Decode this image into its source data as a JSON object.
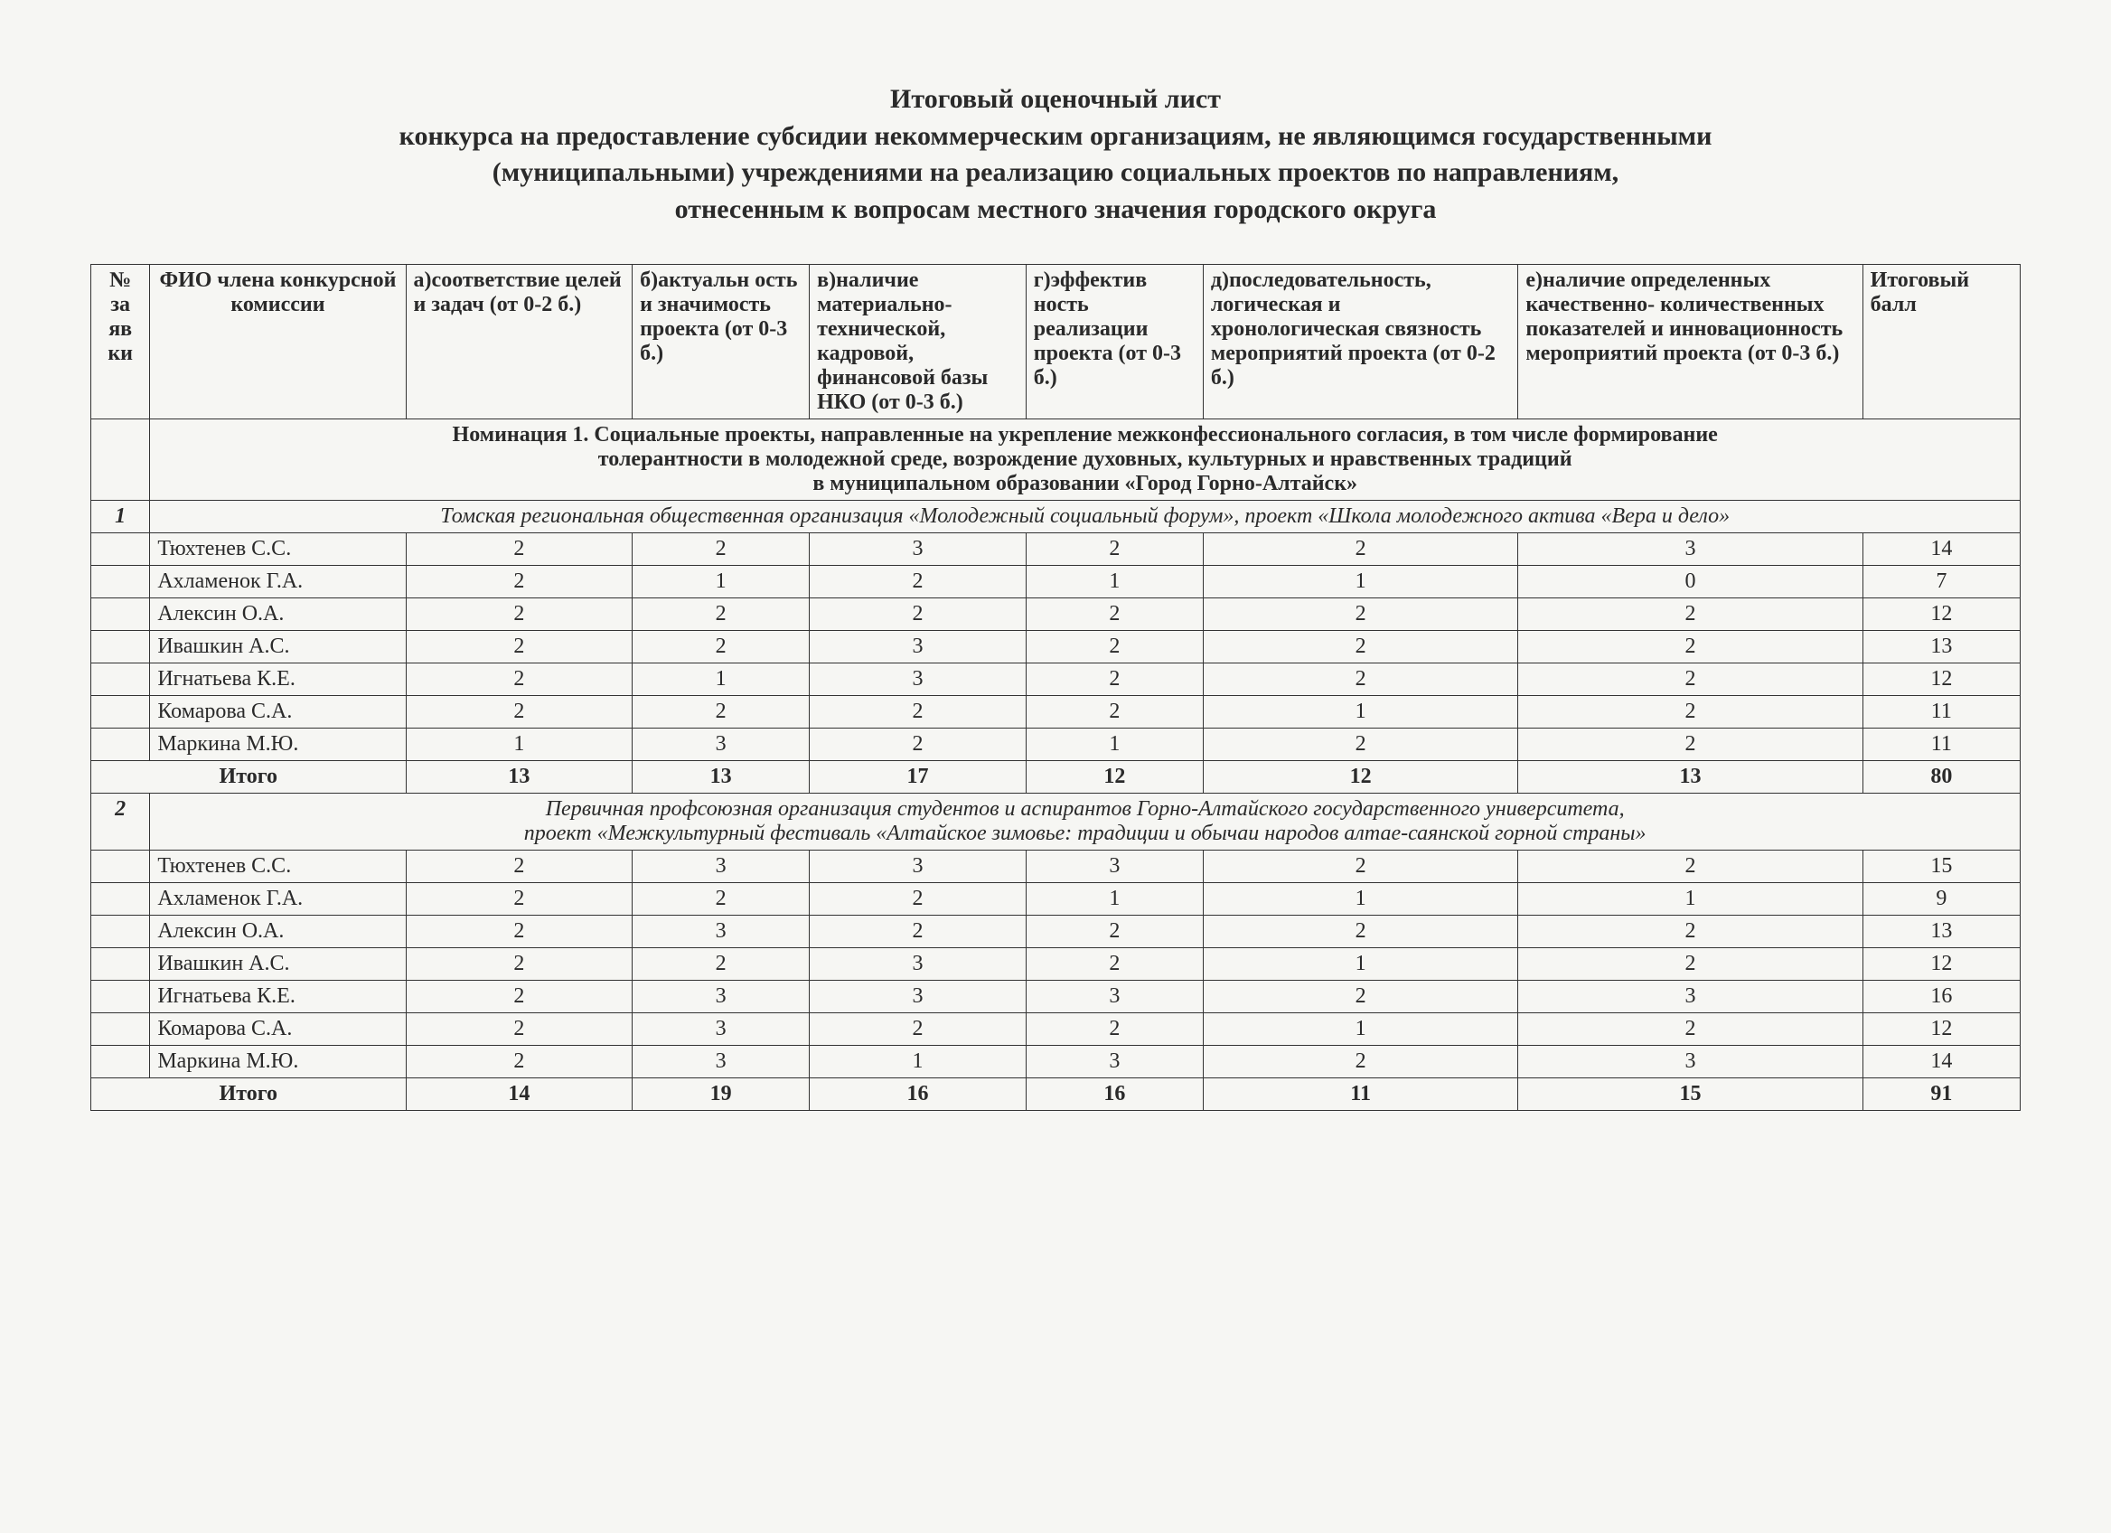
{
  "title": {
    "line1": "Итоговый оценочный лист",
    "line2": "конкурса на предоставление субсидии некоммерческим организациям, не являющимся государственными",
    "line3": "(муниципальными) учреждениями на реализацию социальных проектов по направлениям,",
    "line4": "отнесенным к вопросам местного значения городского округа"
  },
  "headers": {
    "num": "№ за яв ки",
    "fio": "ФИО члена конкурсной комиссии",
    "a": "а)соответствие целей и задач (от 0-2 б.)",
    "b": "б)актуальн ость и значимость проекта (от 0-3 б.)",
    "c": "в)наличие материально- технической, кадровой, финансовой базы НКО (от 0-3 б.)",
    "d": "г)эффектив ность реализации проекта (от 0-3 б.)",
    "e": "д)последовательность, логическая и хронологическая связность мероприятий проекта (от 0-2 б.)",
    "f": "е)наличие определенных качественно- количественных показателей и инновационность мероприятий проекта (от 0-3 б.)",
    "total": "Итоговый балл"
  },
  "nomination": {
    "line1": "Номинация 1. Социальные проекты, направленные на укрепление межконфессионального согласия, в том числе формирование",
    "line2": "толерантности в молодежной среде, возрождение духовных, культурных и нравственных традиций",
    "line3": "в муниципальном образовании «Город Горно-Алтайск»"
  },
  "entries": [
    {
      "num": "1",
      "project": "Томская региональная общественная организация «Молодежный социальный форум», проект «Школа молодежного актива «Вера и дело»",
      "rows": [
        {
          "name": "Тюхтенев С.С.",
          "a": "2",
          "b": "2",
          "c": "3",
          "d": "2",
          "e": "2",
          "f": "3",
          "t": "14"
        },
        {
          "name": "Ахламенок Г.А.",
          "a": "2",
          "b": "1",
          "c": "2",
          "d": "1",
          "e": "1",
          "f": "0",
          "t": "7"
        },
        {
          "name": "Алексин О.А.",
          "a": "2",
          "b": "2",
          "c": "2",
          "d": "2",
          "e": "2",
          "f": "2",
          "t": "12"
        },
        {
          "name": "Ивашкин А.С.",
          "a": "2",
          "b": "2",
          "c": "3",
          "d": "2",
          "e": "2",
          "f": "2",
          "t": "13"
        },
        {
          "name": "Игнатьева К.Е.",
          "a": "2",
          "b": "1",
          "c": "3",
          "d": "2",
          "e": "2",
          "f": "2",
          "t": "12"
        },
        {
          "name": "Комарова С.А.",
          "a": "2",
          "b": "2",
          "c": "2",
          "d": "2",
          "e": "1",
          "f": "2",
          "t": "11"
        },
        {
          "name": "Маркина М.Ю.",
          "a": "1",
          "b": "3",
          "c": "2",
          "d": "1",
          "e": "2",
          "f": "2",
          "t": "11"
        }
      ],
      "sum": {
        "label": "Итого",
        "a": "13",
        "b": "13",
        "c": "17",
        "d": "12",
        "e": "12",
        "f": "13",
        "t": "80"
      }
    },
    {
      "num": "2",
      "project_line1": "Первичная профсоюзная организация студентов и аспирантов Горно-Алтайского государственного университета,",
      "project_line2": "проект «Межкультурный фестиваль «Алтайское зимовье: традиции и обычаи народов алтае-саянской горной страны»",
      "rows": [
        {
          "name": "Тюхтенев С.С.",
          "a": "2",
          "b": "3",
          "c": "3",
          "d": "3",
          "e": "2",
          "f": "2",
          "t": "15"
        },
        {
          "name": "Ахламенок Г.А.",
          "a": "2",
          "b": "2",
          "c": "2",
          "d": "1",
          "e": "1",
          "f": "1",
          "t": "9"
        },
        {
          "name": "Алексин О.А.",
          "a": "2",
          "b": "3",
          "c": "2",
          "d": "2",
          "e": "2",
          "f": "2",
          "t": "13"
        },
        {
          "name": "Ивашкин А.С.",
          "a": "2",
          "b": "2",
          "c": "3",
          "d": "2",
          "e": "1",
          "f": "2",
          "t": "12"
        },
        {
          "name": "Игнатьева К.Е.",
          "a": "2",
          "b": "3",
          "c": "3",
          "d": "3",
          "e": "2",
          "f": "3",
          "t": "16"
        },
        {
          "name": "Комарова С.А.",
          "a": "2",
          "b": "3",
          "c": "2",
          "d": "2",
          "e": "1",
          "f": "2",
          "t": "12"
        },
        {
          "name": "Маркина М.Ю.",
          "a": "2",
          "b": "3",
          "c": "1",
          "d": "3",
          "e": "2",
          "f": "3",
          "t": "14"
        }
      ],
      "sum": {
        "label": "Итого",
        "a": "14",
        "b": "19",
        "c": "16",
        "d": "16",
        "e": "11",
        "f": "15",
        "t": "91"
      }
    }
  ]
}
